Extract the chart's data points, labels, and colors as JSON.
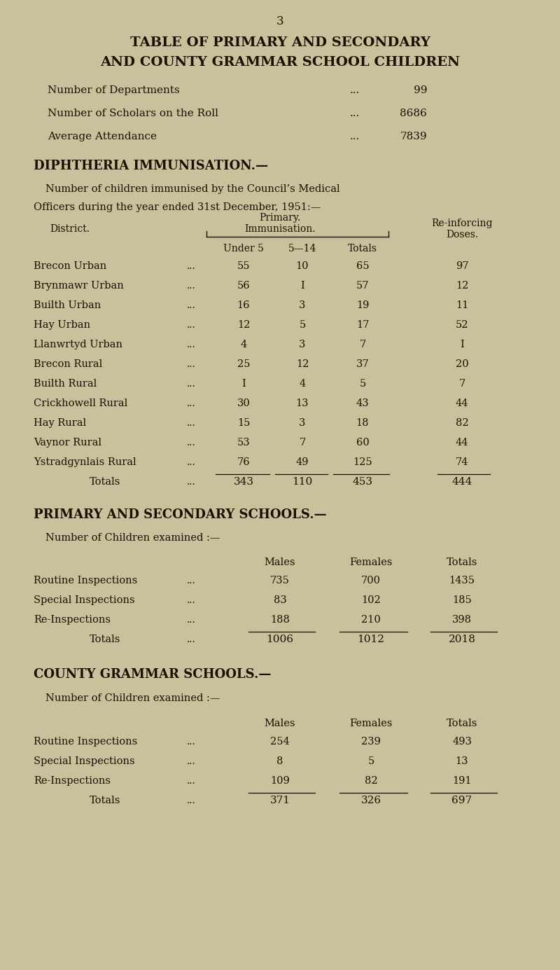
{
  "bg_color": "#c9c09c",
  "text_color": "#1a1000",
  "page_number": "3",
  "title_line1": "TABLE OF PRIMARY AND SECONDARY",
  "title_line2": "AND COUNTY GRAMMAR SCHOOL CHILDREN",
  "stats": [
    {
      "label": "Number of Departments",
      "dots": "...",
      "value": "99"
    },
    {
      "label": "Number of Scholars on the Roll",
      "dots": "...",
      "value": "8686"
    },
    {
      "label": "Average Attendance",
      "dots": "...",
      "value": "7839"
    }
  ],
  "section1_title": "DIPHTHERIA IMMUNISATION.—",
  "section1_intro_a": "Number of children immunised by the Council’s Medical",
  "section1_intro_b": "Officers during the year ended 31st December, 1951:—",
  "diphtheria_rows": [
    [
      "Brecon Urban",
      "55",
      "10",
      "65",
      "97"
    ],
    [
      "Brynmawr Urban",
      "56",
      "I",
      "57",
      "12"
    ],
    [
      "Builth Urban",
      "16",
      "3",
      "19",
      "11"
    ],
    [
      "Hay Urban",
      "12",
      "5",
      "17",
      "52"
    ],
    [
      "Llanwrtyd Urban",
      "4",
      "3",
      "7",
      "I"
    ],
    [
      "Brecon Rural",
      "25",
      "12",
      "37",
      "20"
    ],
    [
      "Builth Rural",
      "I",
      "4",
      "5",
      "7"
    ],
    [
      "Crickhowell Rural",
      "30",
      "13",
      "43",
      "44"
    ],
    [
      "Hay Rural",
      "15",
      "3",
      "18",
      "82"
    ],
    [
      "Vaynor Rural",
      "53",
      "7",
      "60",
      "44"
    ],
    [
      "Ystradgynlais Rural",
      "76",
      "49",
      "125",
      "74"
    ]
  ],
  "diphtheria_totals": [
    "Totals",
    "343",
    "110",
    "453",
    "444"
  ],
  "section2_title": "PRIMARY AND SECONDARY SCHOOLS.—",
  "section2_intro": "Number of Children examined :—",
  "schools_col_headers": [
    "Males",
    "Females",
    "Totals"
  ],
  "primary_rows": [
    [
      "Routine Inspections",
      "735",
      "700",
      "1435"
    ],
    [
      "Special Inspections",
      "83",
      "102",
      "185"
    ],
    [
      "Re-Inspections",
      "188",
      "210",
      "398"
    ]
  ],
  "primary_totals": [
    "Totals",
    "1006",
    "1012",
    "2018"
  ],
  "section3_title": "COUNTY GRAMMAR SCHOOLS.—",
  "section3_intro": "Number of Children examined :—",
  "grammar_rows": [
    [
      "Routine Inspections",
      "254",
      "239",
      "493"
    ],
    [
      "Special Inspections",
      "8",
      "5",
      "13"
    ],
    [
      "Re-Inspections",
      "109",
      "82",
      "191"
    ]
  ],
  "grammar_totals": [
    "Totals",
    "371",
    "326",
    "697"
  ]
}
